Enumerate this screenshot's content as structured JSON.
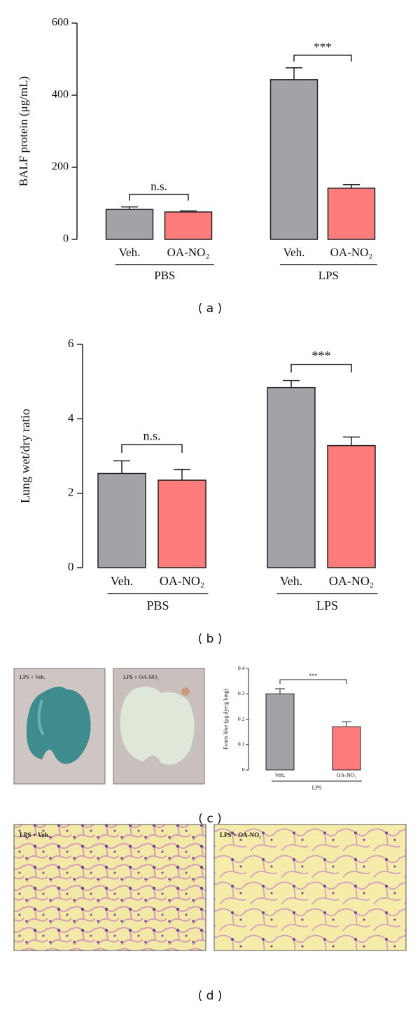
{
  "chart_data": [
    {
      "type": "bar",
      "y_label": "BALF protein (μg/mL)",
      "categories": [
        "Veh.",
        "OA-NO₂",
        "Veh.",
        "OA-NO₂"
      ],
      "values": [
        83,
        76,
        443,
        142
      ],
      "errors": [
        7,
        3,
        33,
        10
      ],
      "colors": [
        "#a3a2a7",
        "#fd7b7b",
        "#a3a2a7",
        "#fd7b7b"
      ],
      "group_labels": [
        "PBS",
        "LPS"
      ],
      "brackets": [
        "n.s.",
        "***"
      ],
      "ylim": [
        0,
        600
      ],
      "yticks": [
        0,
        200,
        400,
        600
      ]
    },
    {
      "type": "bar",
      "y_label": "Lung wet/dry ratio",
      "categories": [
        "Veh.",
        "OA-NO₂",
        "Veh.",
        "OA-NO₂"
      ],
      "values": [
        2.53,
        2.35,
        4.84,
        3.28
      ],
      "errors": [
        0.34,
        0.29,
        0.19,
        0.23
      ],
      "colors": [
        "#a3a2a7",
        "#fd7b7b",
        "#a3a2a7",
        "#fd7b7b"
      ],
      "group_labels": [
        "PBS",
        "LPS"
      ],
      "brackets": [
        "n.s.",
        "***"
      ],
      "ylim": [
        0,
        6
      ],
      "yticks": [
        0,
        2,
        4,
        6
      ]
    },
    {
      "type": "bar",
      "y_label": "Evans blue (μg dye/g lung)",
      "categories": [
        "Veh.",
        "OA-NO₂"
      ],
      "values": [
        0.3,
        0.17
      ],
      "errors": [
        0.02,
        0.02
      ],
      "colors": [
        "#a3a2a7",
        "#fd7b7b"
      ],
      "group_labels": [
        "LPS"
      ],
      "brackets": [
        "***"
      ],
      "ylim": [
        0,
        0.4
      ],
      "yticks": [
        0,
        0.1,
        0.2,
        0.3,
        0.4
      ]
    }
  ],
  "panel_labels": [
    "( a )",
    "( b )",
    "( c )",
    "( d )"
  ],
  "photo_labels": [
    "LPS + Veh.",
    "LPS + OA-NO₂",
    "LPS + Veh.",
    "LPS + OA-NO₂"
  ]
}
